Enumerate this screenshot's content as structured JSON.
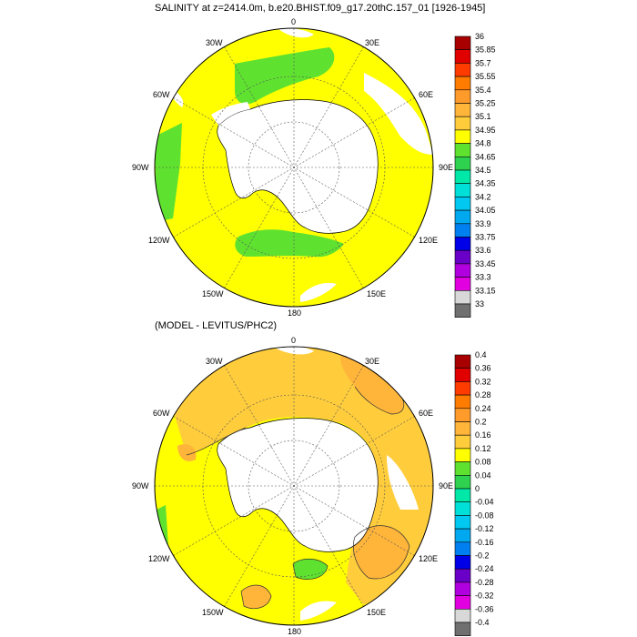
{
  "panel1": {
    "title": "SALINITY at z=2414.0m, b.e20.BHIST.f09_g17.20thC.157_01 [1926-1945]",
    "lon_labels": [
      "0",
      "30E",
      "60E",
      "90E",
      "120E",
      "150E",
      "180",
      "150W",
      "120W",
      "90W",
      "60W",
      "30W"
    ],
    "colorbar": {
      "labels": [
        "36",
        "35.85",
        "35.7",
        "35.55",
        "35.4",
        "35.25",
        "35.1",
        "34.95",
        "34.8",
        "34.65",
        "34.5",
        "34.35",
        "34.2",
        "34.05",
        "33.9",
        "33.75",
        "33.6",
        "33.45",
        "33.3",
        "33.15",
        "33"
      ],
      "colors": [
        "#a80000",
        "#e00000",
        "#ff3c00",
        "#ff7c00",
        "#ff9b2a",
        "#ffb43a",
        "#ffcd3c",
        "#ffff00",
        "#5fe22f",
        "#2fd24f",
        "#00e8a8",
        "#00e0d8",
        "#00c8f0",
        "#00a8f0",
        "#0080f0",
        "#0000e8",
        "#6a00c8",
        "#b000e0",
        "#e000e0",
        "#d8d8d8",
        "#707070"
      ]
    }
  },
  "panel2": {
    "title": "(MODEL - LEVITUS/PHC2)",
    "lon_labels": [
      "0",
      "30E",
      "60E",
      "90E",
      "120E",
      "150E",
      "180",
      "150W",
      "120W",
      "90W",
      "60W",
      "30W"
    ],
    "colorbar": {
      "labels": [
        "0.4",
        "0.36",
        "0.32",
        "0.28",
        "0.24",
        "0.2",
        "0.16",
        "0.12",
        "0.08",
        "0.04",
        "0",
        "-0.04",
        "-0.08",
        "-0.12",
        "-0.16",
        "-0.2",
        "-0.24",
        "-0.28",
        "-0.32",
        "-0.36",
        "-0.4"
      ],
      "colors": [
        "#a80000",
        "#e00000",
        "#ff3c00",
        "#ff7c00",
        "#ff9b2a",
        "#ffb43a",
        "#ffcd3c",
        "#ffff00",
        "#5fe22f",
        "#2fd24f",
        "#00e8a8",
        "#00e0d8",
        "#00c8f0",
        "#00a8f0",
        "#0080f0",
        "#0000e8",
        "#6a00c8",
        "#b000e0",
        "#e000e0",
        "#d8d8d8",
        "#707070"
      ]
    }
  }
}
